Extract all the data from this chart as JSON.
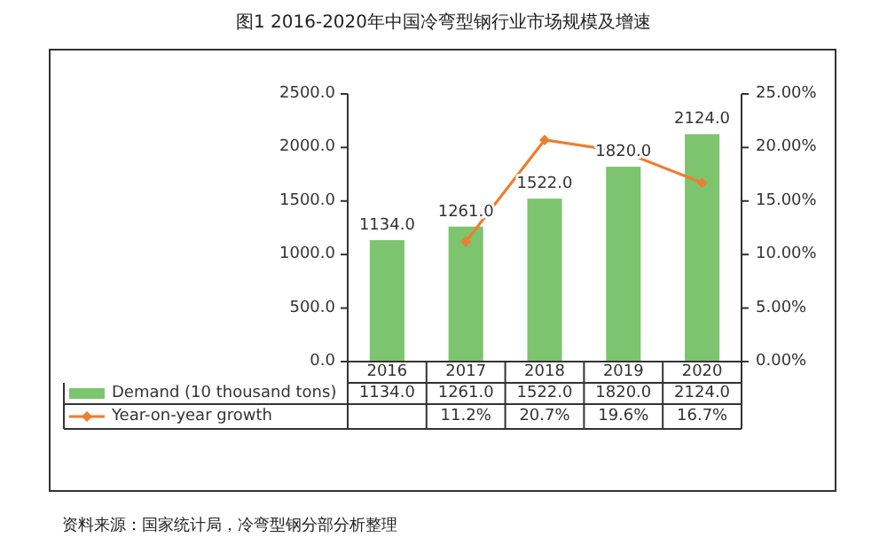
{
  "chart_data": {
    "type": "bar",
    "title": "图1 2016-2020年中国冷弯型钢行业市场规模及增速",
    "categories": [
      "2016",
      "2017",
      "2018",
      "2019",
      "2020"
    ],
    "series": [
      {
        "name": "Demand (10 thousand tons)",
        "color": "#7dc46e",
        "values": [
          1134,
          1261,
          1522,
          1820,
          2124
        ],
        "value_labels": [
          "1134.0",
          "1261.0",
          "1522.0",
          "1820.0",
          "2124.0"
        ]
      },
      {
        "name": "Year-on-year growth",
        "type": "line",
        "axis": "y2",
        "color": "#ed7d31",
        "marker": "diamond",
        "values": [
          null,
          11.2,
          20.7,
          19.6,
          16.7
        ],
        "value_labels": [
          null,
          "11.2%",
          "20.7%",
          "19.6%",
          "16.7%"
        ]
      }
    ],
    "ylim": [
      0,
      2500
    ],
    "yticks": [
      {
        "value": 0,
        "label": "0.0"
      },
      {
        "value": 500,
        "label": "500.0"
      },
      {
        "value": 1000,
        "label": "1000.0"
      },
      {
        "value": 1500,
        "label": "1500.0"
      },
      {
        "value": 2000,
        "label": "2000.0"
      },
      {
        "value": 2500,
        "label": "2500.0"
      }
    ],
    "y2lim": [
      0,
      25
    ],
    "y2ticks": [
      {
        "value": 0,
        "label": "0.00%"
      },
      {
        "value": 5,
        "label": "5.00%"
      },
      {
        "value": 10,
        "label": "10.00%"
      },
      {
        "value": 15,
        "label": "15.00%"
      },
      {
        "value": 20,
        "label": "20.00%"
      },
      {
        "value": 25,
        "label": "25.00%"
      }
    ],
    "legend": "bottom",
    "annotations": [
      "资料来源：国家统计局，冷弯型钢分部分析整理"
    ]
  }
}
